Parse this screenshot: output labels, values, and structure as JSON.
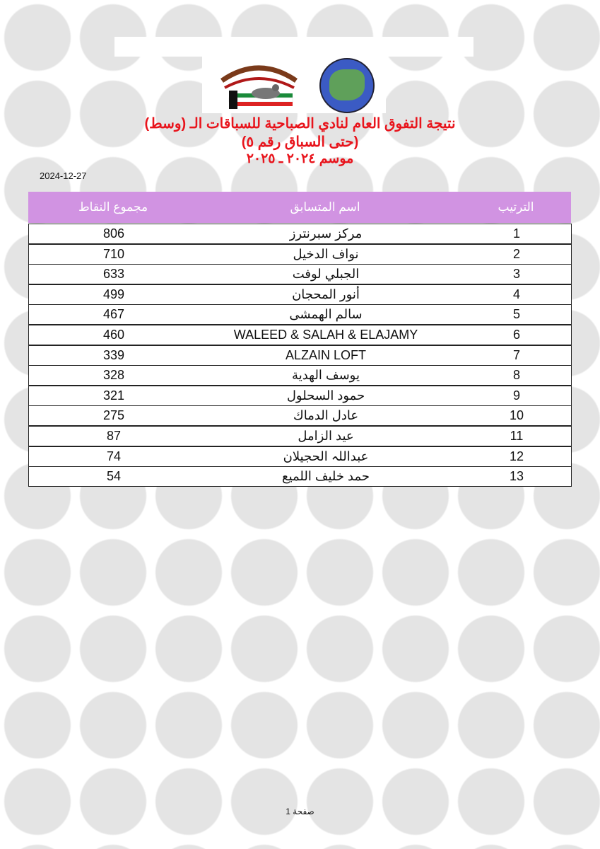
{
  "header": {
    "logo_left_text": "النادي الكويتي لسباق الحمام الزاجل - Kuwait Racing Pigeon Club",
    "logo_right_text": "الاتحاد الكويتي لسباق حمام الزاجل - Kuwait Federation for Racing Pigeon",
    "title_line1": "نتيجة التفوق العام لنادي الصباحية للسباقات الـ (وسط)",
    "title_line2": "(حتى السباق رقم ٥)",
    "title_line3": "موسم ٢٠٢٤ ـ ٢٠٢٥",
    "title_color": "#e8141c",
    "date": "2024-12-27"
  },
  "table": {
    "header_color": "#d193e2",
    "columns": {
      "rank": "الترتيب",
      "name": "اسم المتسابق",
      "points": "مجموع النقاط"
    },
    "rows": [
      {
        "rank": "1",
        "name": "مركز سبرنترز",
        "points": "806"
      },
      {
        "rank": "2",
        "name": "نواف الدخيل",
        "points": "710"
      },
      {
        "rank": "3",
        "name": "الجبلي لوفت",
        "points": "633"
      },
      {
        "rank": "4",
        "name": "أنور المحجان",
        "points": "499"
      },
      {
        "rank": "5",
        "name": "سالم الهمشى",
        "points": "467"
      },
      {
        "rank": "6",
        "name": "WALEED & SALAH & ELAJAMY",
        "points": "460"
      },
      {
        "rank": "7",
        "name": "ALZAIN LOFT",
        "points": "339"
      },
      {
        "rank": "8",
        "name": "يوسف الهدية",
        "points": "328"
      },
      {
        "rank": "9",
        "name": "حمود السحلول",
        "points": "321"
      },
      {
        "rank": "10",
        "name": "عادل الدماك",
        "points": "275"
      },
      {
        "rank": "11",
        "name": "عيد الزامل",
        "points": "87"
      },
      {
        "rank": "12",
        "name": "عبداللہ الحجيلان",
        "points": "74"
      },
      {
        "rank": "13",
        "name": "حمد خليف اللميع",
        "points": "54"
      }
    ]
  },
  "footer": {
    "page_label": "صفحة 1"
  }
}
